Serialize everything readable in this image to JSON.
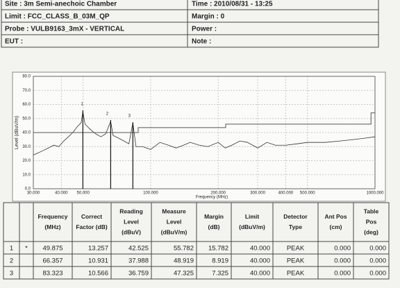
{
  "header": {
    "rows": [
      [
        "Site : 3m Semi-anechoic Chamber",
        "Time : 2010/08/31 - 13:25"
      ],
      [
        "Limit : FCC_CLASS_B_03M_QP",
        "Margin : 0"
      ],
      [
        "Probe : VULB9163_3mX - VERTICAL",
        "Power :"
      ],
      [
        "EUT :",
        "Note :"
      ]
    ]
  },
  "chart": {
    "type": "line",
    "x_label": "Frequency (MHz)",
    "y_label": "Level (dBuV/m)",
    "log_x": true,
    "xlim": [
      30,
      1000
    ],
    "ylim": [
      0,
      80
    ],
    "xticks": [
      {
        "value": 30,
        "label": "30.000"
      },
      {
        "value": 40,
        "label": "40.000"
      },
      {
        "value": 50,
        "label": "50.000"
      },
      {
        "value": 100,
        "label": "100.000"
      },
      {
        "value": 200,
        "label": "200.000"
      },
      {
        "value": 300,
        "label": "300.000"
      },
      {
        "value": 400,
        "label": "400.000"
      },
      {
        "value": 500,
        "label": "500.000"
      },
      {
        "value": 1000,
        "label": "1000.000"
      }
    ],
    "yticks": [
      {
        "value": 0,
        "label": "0.0"
      },
      {
        "value": 10,
        "label": "10.0"
      },
      {
        "value": 20,
        "label": "20.0"
      },
      {
        "value": 30,
        "label": "30.0"
      },
      {
        "value": 40,
        "label": "40.0"
      },
      {
        "value": 50,
        "label": "50.0"
      },
      {
        "value": 60,
        "label": "60.0"
      },
      {
        "value": 70,
        "label": "70.0"
      },
      {
        "value": 80,
        "label": "80.0"
      }
    ],
    "grid": true,
    "series": [
      {
        "color": "#333333",
        "x": [
          30,
          31,
          33,
          35,
          37,
          39,
          41,
          43,
          45,
          47,
          49,
          49.875,
          51,
          54,
          57,
          60,
          63,
          66.357,
          68,
          72,
          76,
          80,
          83.323,
          86,
          92,
          100,
          110,
          120,
          130,
          140,
          150,
          165,
          180,
          200,
          215,
          230,
          250,
          270,
          300,
          330,
          360,
          400,
          450,
          500,
          600,
          700,
          800,
          900,
          1000
        ],
        "values": [
          24,
          25,
          27,
          29,
          31,
          30,
          34,
          37,
          40,
          44,
          47,
          55,
          46,
          42,
          39,
          37,
          39,
          48,
          38,
          36,
          34,
          32,
          47,
          30,
          30,
          28,
          33,
          31,
          29,
          31,
          33,
          31,
          30,
          33,
          29,
          31,
          34,
          33,
          29,
          33,
          31,
          31,
          32,
          33,
          33,
          34,
          35,
          36,
          37
        ]
      },
      {
        "color": "#555555",
        "x": [
          30,
          88,
          88,
          216,
          216,
          960,
          960,
          1000
        ],
        "values": [
          40,
          40,
          43.5,
          43.5,
          46,
          46,
          54,
          54
        ]
      }
    ]
  },
  "table": {
    "columns": [
      [
        "Frequency",
        "(MHz)"
      ],
      [
        "Correct",
        "Factor (dB)"
      ],
      [
        "Reading",
        "Level",
        "(dBuV)"
      ],
      [
        "Measure",
        "Level",
        "(dBuV/m)"
      ],
      [
        "Margin",
        "(dB)"
      ],
      [
        "Limit",
        "(dBuV/m)"
      ],
      [
        "Detector",
        "Type"
      ],
      [
        "Ant Pos",
        "(cm)"
      ],
      [
        "Table",
        "Pos",
        "(deg)"
      ]
    ],
    "rows": [
      [
        "1",
        "*",
        "49.875",
        "13.257",
        "42.525",
        "55.782",
        "15.782",
        "40.000",
        "PEAK",
        "0.000",
        "0.000"
      ],
      [
        "2",
        null,
        "66.357",
        "10.931",
        "37.988",
        "48.919",
        "8.919",
        "40.000",
        "PEAK",
        "0.000",
        "0.000"
      ],
      [
        "3",
        null,
        "83.323",
        "10.566",
        "36.759",
        "47.325",
        "7.325",
        "40.000",
        "PEAK",
        "0.000",
        "0.000"
      ]
    ]
  }
}
